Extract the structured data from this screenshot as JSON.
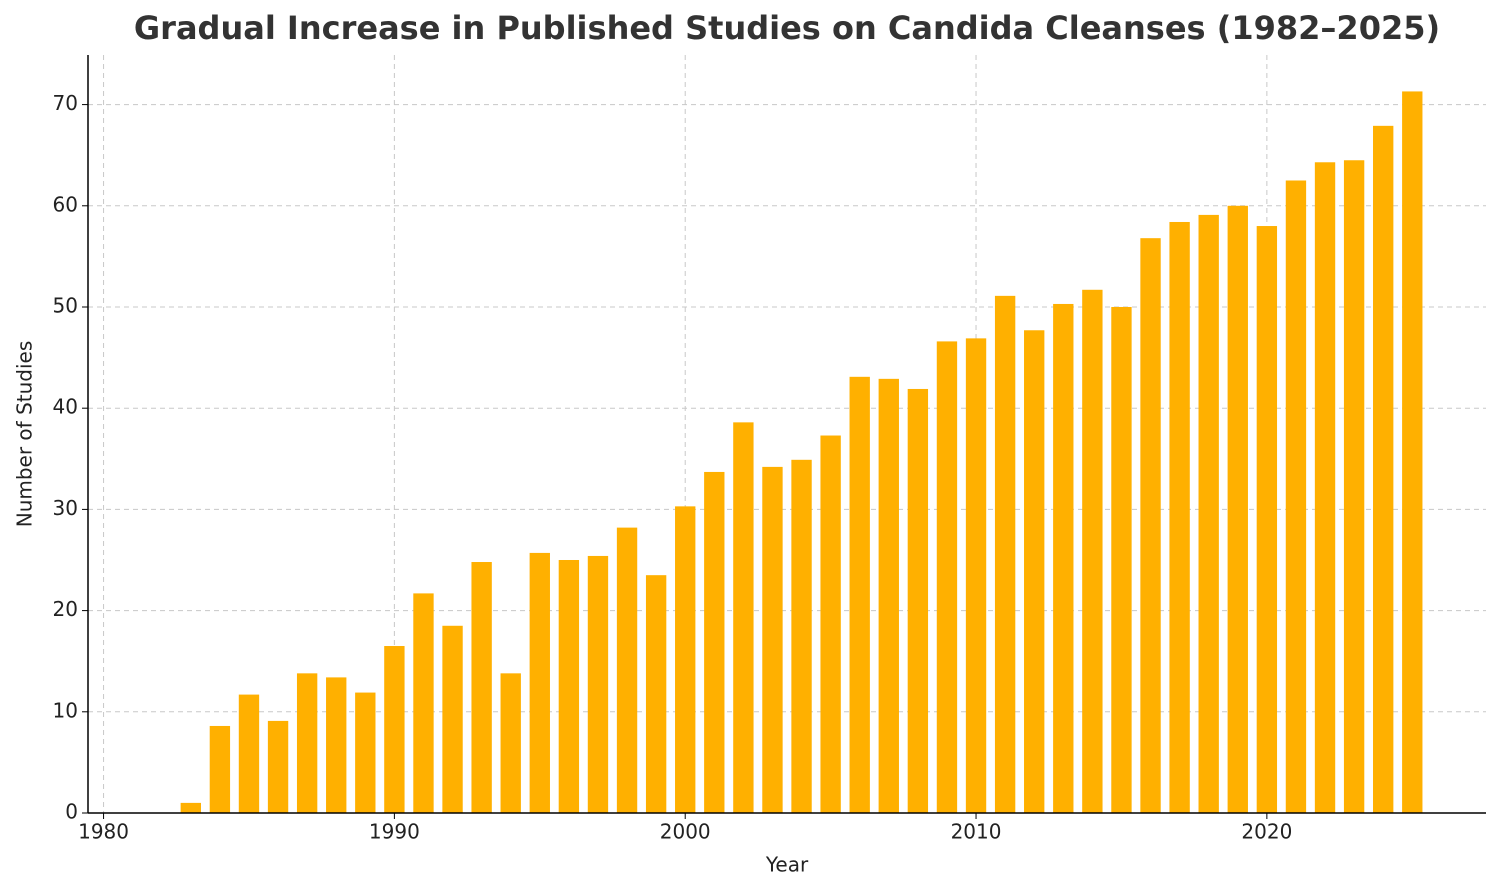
{
  "chart_data": {
    "type": "bar",
    "title": "Gradual Increase in Published Studies on Candida Cleanses (1982–2025)",
    "x_label": "Year",
    "y_label": "Number of Studies",
    "x": [
      1982,
      1983,
      1984,
      1985,
      1986,
      1987,
      1988,
      1989,
      1990,
      1991,
      1992,
      1993,
      1994,
      1995,
      1996,
      1997,
      1998,
      1999,
      2000,
      2001,
      2002,
      2003,
      2004,
      2005,
      2006,
      2007,
      2008,
      2009,
      2010,
      2011,
      2012,
      2013,
      2014,
      2015,
      2016,
      2017,
      2018,
      2019,
      2020,
      2021,
      2022,
      2023,
      2024,
      2025
    ],
    "values": [
      0,
      1.0,
      8.6,
      11.7,
      9.1,
      13.8,
      13.4,
      11.9,
      16.5,
      21.7,
      18.5,
      24.8,
      13.8,
      25.7,
      25.0,
      25.4,
      28.2,
      23.5,
      30.3,
      33.7,
      38.6,
      34.2,
      34.9,
      37.3,
      43.1,
      42.9,
      41.9,
      46.6,
      46.9,
      51.1,
      47.7,
      50.3,
      51.7,
      50.0,
      56.8,
      58.4,
      59.1,
      60.0,
      58.0,
      62.5,
      64.3,
      64.5,
      67.9,
      71.3
    ],
    "color": "#ffb000",
    "xlim": [
      1979.465,
      2027.535
    ],
    "xticks": [
      1980,
      1990,
      2000,
      2010,
      2020
    ],
    "ylim": [
      0,
      74.9
    ],
    "yticks": [
      0,
      10,
      20,
      30,
      40,
      50,
      60,
      70
    ],
    "grid": true
  }
}
